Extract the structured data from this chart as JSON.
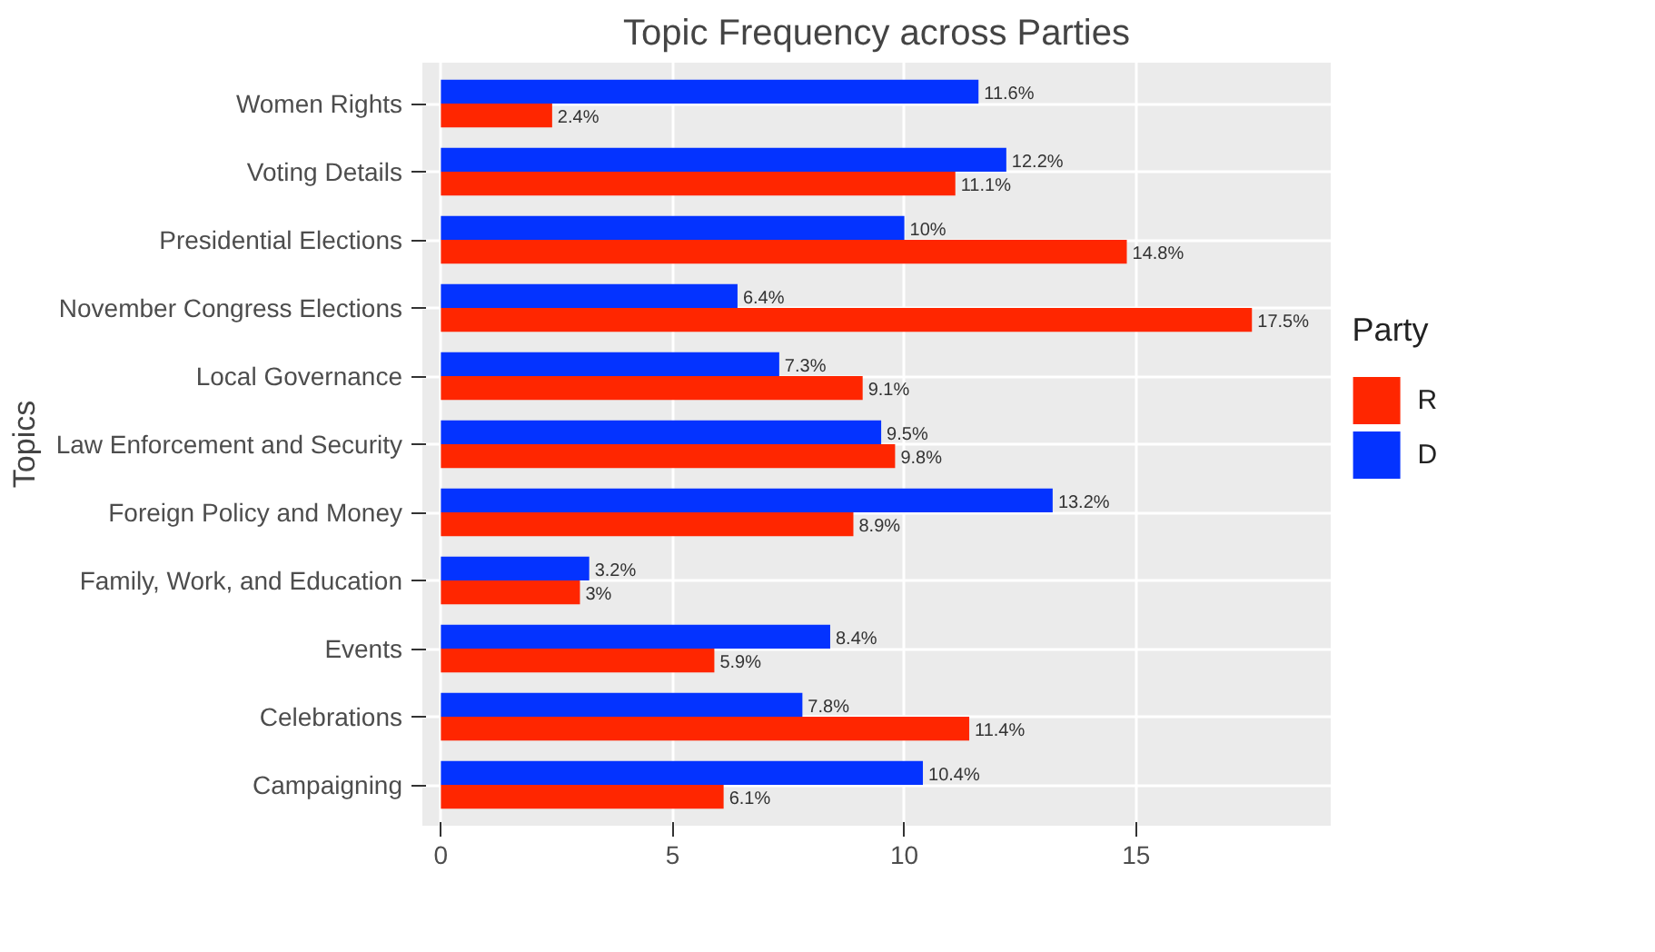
{
  "chart_data": {
    "type": "bar",
    "orientation": "horizontal",
    "title": "Topic Frequency across Parties",
    "ylabel": "Topics",
    "legend_title": "Party",
    "legend": "right",
    "grid": true,
    "categories": [
      "Women Rights",
      "Voting Details",
      "Presidential Elections",
      "November Congress Elections",
      "Local Governance",
      "Law Enforcement and Security",
      "Foreign Policy and Money",
      "Family, Work, and Education",
      "Events",
      "Celebrations",
      "Campaigning"
    ],
    "series": [
      {
        "name": "R",
        "color": "#ff2600",
        "values": [
          2.4,
          11.1,
          14.8,
          17.5,
          9.1,
          9.8,
          8.9,
          3,
          5.9,
          11.4,
          6.1
        ],
        "value_labels": [
          "2.4%",
          "11.1%",
          "14.8%",
          "17.5%",
          "9.1%",
          "9.8%",
          "8.9%",
          "3%",
          "5.9%",
          "11.4%",
          "6.1%"
        ]
      },
      {
        "name": "D",
        "color": "#0433ff",
        "values": [
          11.6,
          12.2,
          10,
          6.4,
          7.3,
          9.5,
          13.2,
          3.2,
          8.4,
          7.8,
          10.4
        ],
        "value_labels": [
          "11.6%",
          "12.2%",
          "10%",
          "6.4%",
          "7.3%",
          "9.5%",
          "13.2%",
          "3.2%",
          "8.4%",
          "7.8%",
          "10.4%"
        ]
      }
    ],
    "xlim": [
      -0.4,
      19.2
    ],
    "xticks": [
      0,
      5,
      10,
      15
    ]
  }
}
